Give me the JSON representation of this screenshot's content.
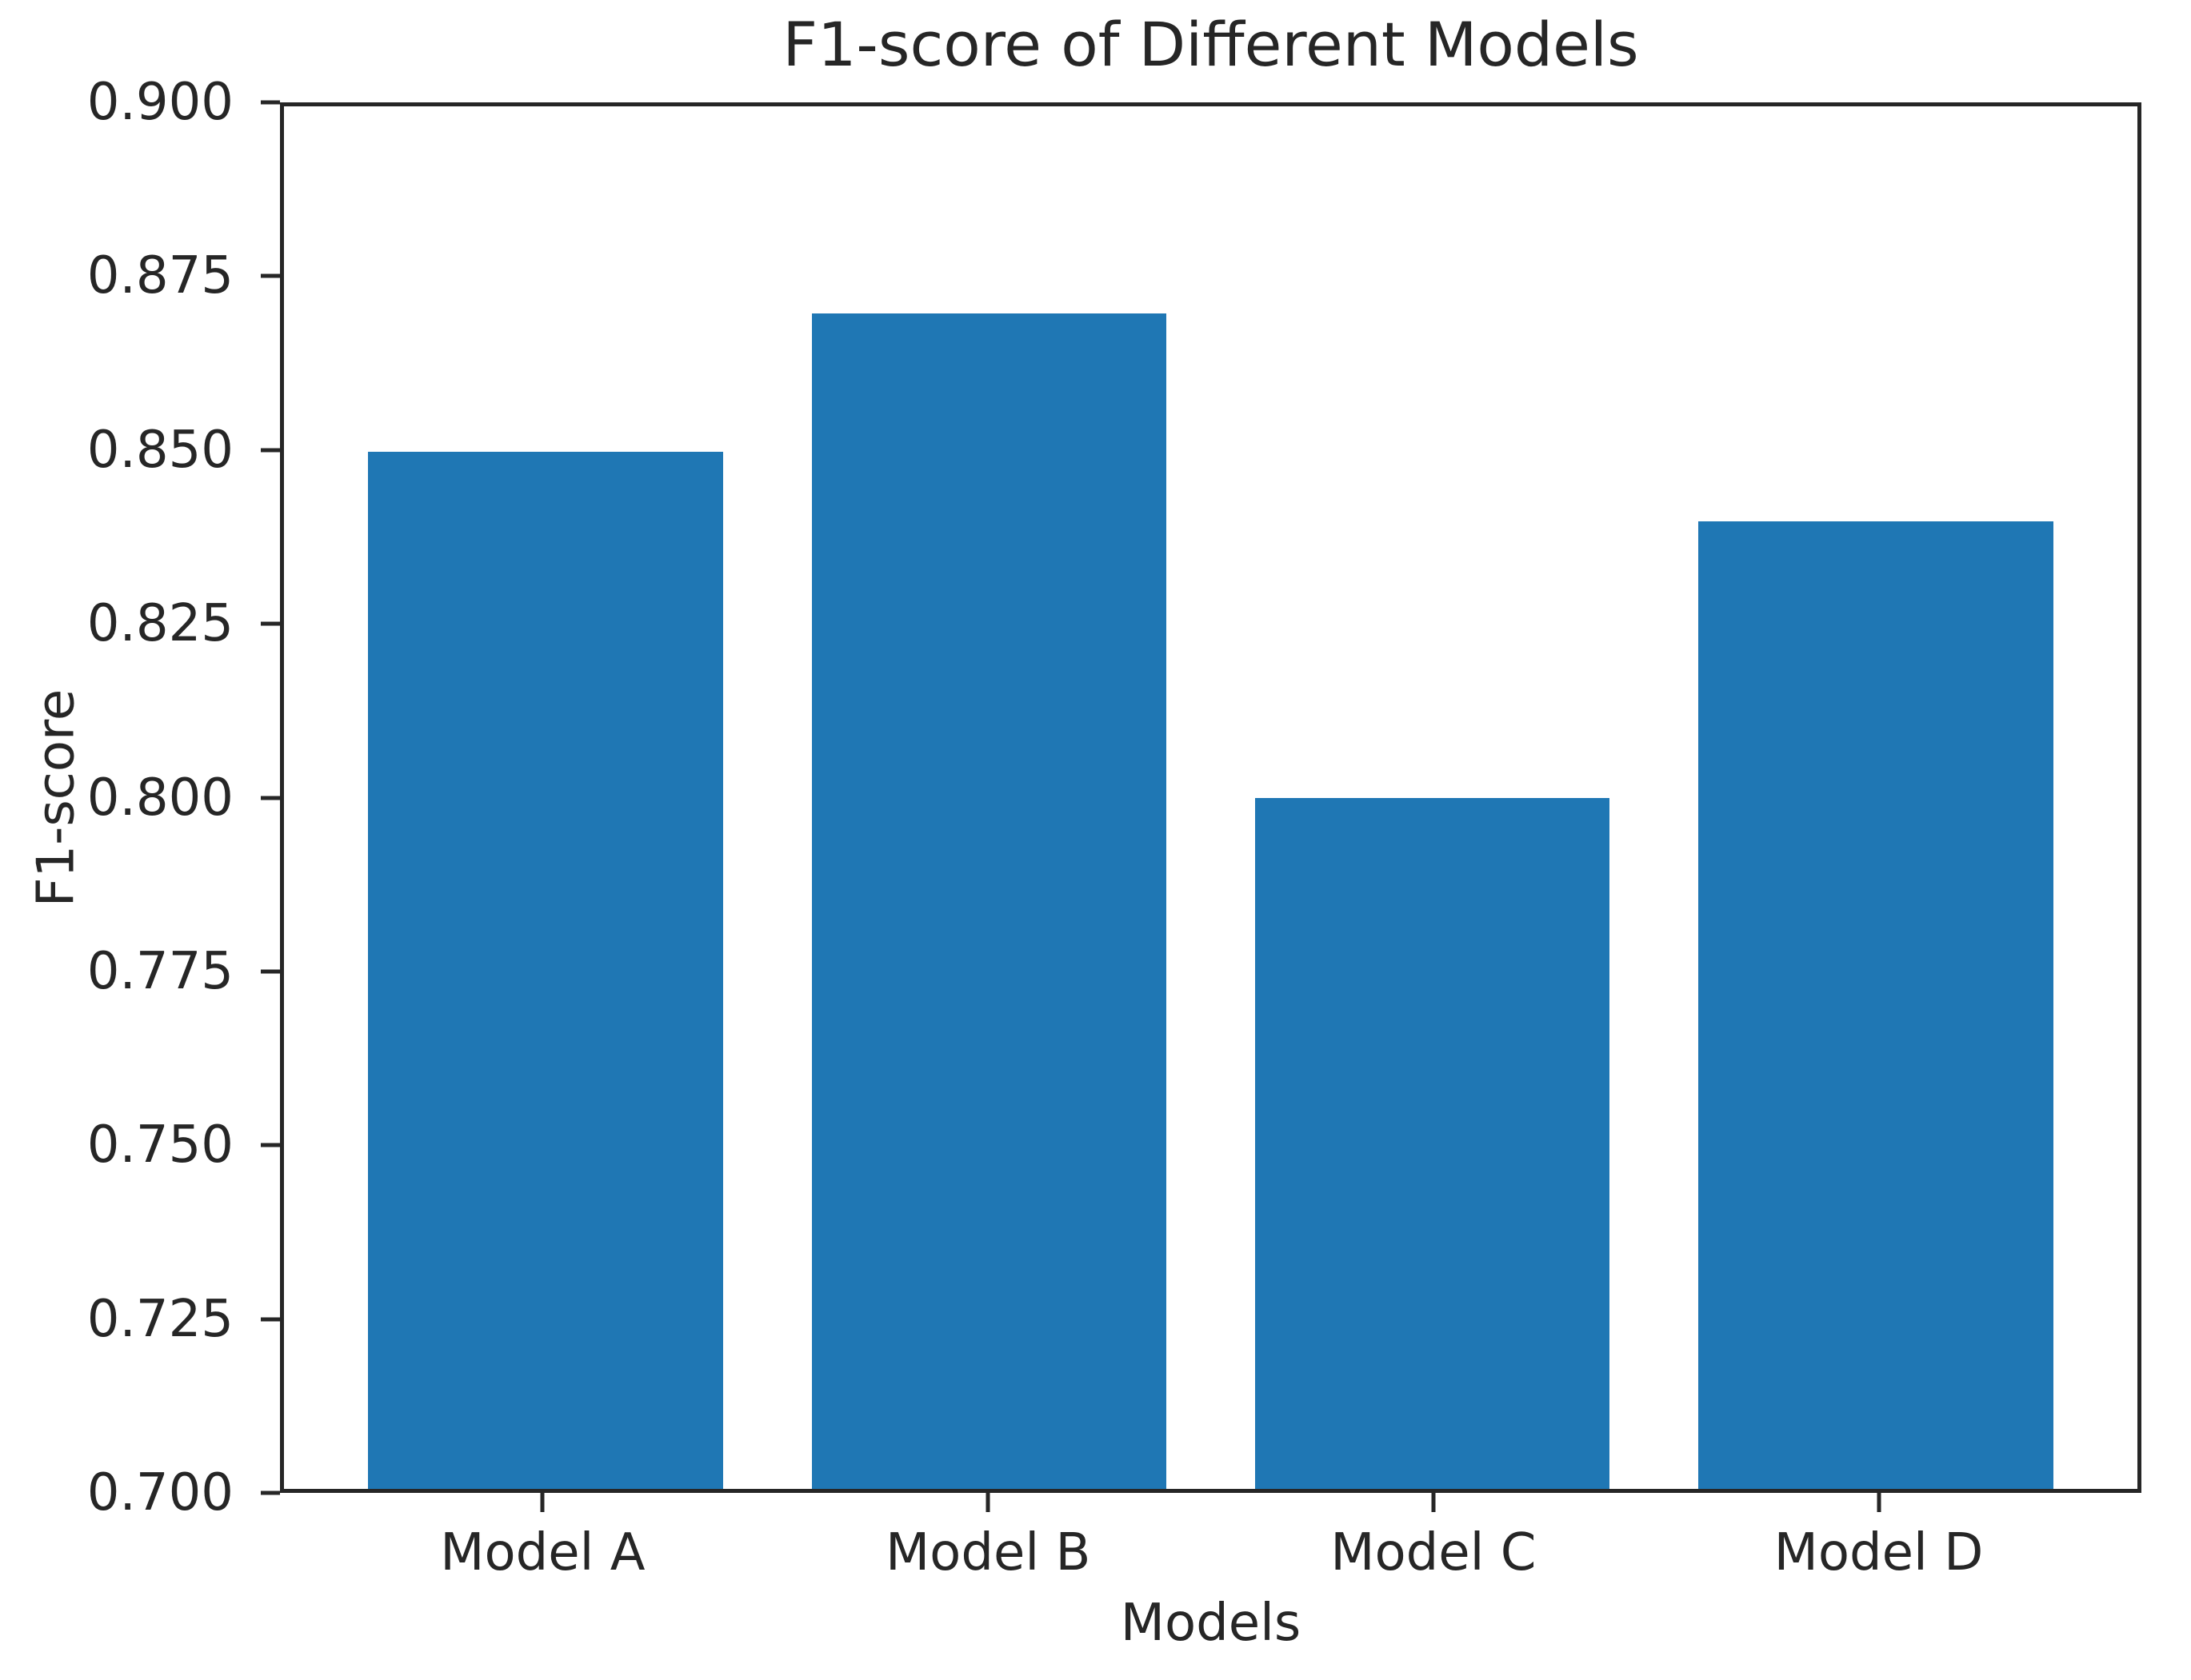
{
  "chart_data": {
    "type": "bar",
    "title": "F1-score of Different Models",
    "xlabel": "Models",
    "ylabel": "F1-score",
    "categories": [
      "Model A",
      "Model B",
      "Model C",
      "Model D"
    ],
    "values": [
      0.85,
      0.87,
      0.8,
      0.84
    ],
    "ylim": [
      0.7,
      0.9
    ],
    "yticks": [
      0.7,
      0.725,
      0.75,
      0.775,
      0.8,
      0.825,
      0.85,
      0.875,
      0.9
    ],
    "ytick_labels": [
      "0.700",
      "0.725",
      "0.750",
      "0.775",
      "0.800",
      "0.825",
      "0.850",
      "0.875",
      "0.900"
    ],
    "bar_color": "#1f77b4",
    "axis_color": "#262626",
    "text_color": "#262626",
    "background_color": "#ffffff",
    "layout": {
      "grid": false,
      "legend": false,
      "frame": "box",
      "bar_width_fraction": 0.8,
      "x_margin": 0.05
    }
  }
}
